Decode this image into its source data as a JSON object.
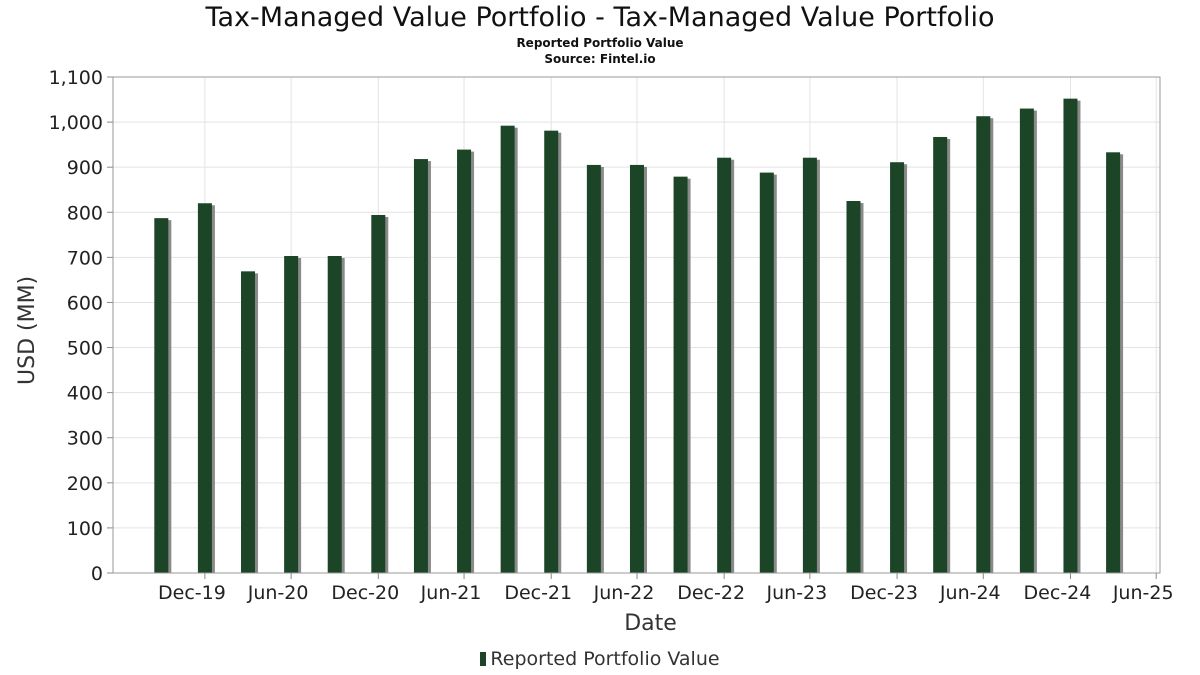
{
  "title": "Tax-Managed Value Portfolio - Tax-Managed Value Portfolio",
  "subtitle": "Reported Portfolio Value",
  "source": "Source: Fintel.io",
  "chart_data": {
    "type": "bar",
    "title": "Tax-Managed Value Portfolio - Tax-Managed Value Portfolio",
    "xlabel": "Date",
    "ylabel": "USD (MM)",
    "ylim": [
      0,
      1100
    ],
    "grid": true,
    "legend_position": "bottom",
    "y_ticks": [
      "0",
      "100",
      "200",
      "300",
      "400",
      "500",
      "600",
      "700",
      "800",
      "900",
      "1,000",
      "1,100"
    ],
    "x_ticks": [
      "Dec-19",
      "Jun-20",
      "Dec-20",
      "Jun-21",
      "Dec-21",
      "Jun-22",
      "Dec-22",
      "Jun-23",
      "Dec-23",
      "Jun-24",
      "Dec-24",
      "Jun-25"
    ],
    "series": [
      {
        "name": "Reported Portfolio Value",
        "color": "#1b4526",
        "x": [
          "2019-09-30",
          "2019-12-31",
          "2020-03-31",
          "2020-06-30",
          "2020-09-30",
          "2020-12-31",
          "2021-03-31",
          "2021-06-30",
          "2021-09-30",
          "2021-12-31",
          "2022-03-31",
          "2022-06-30",
          "2022-09-30",
          "2022-12-31",
          "2023-03-31",
          "2023-06-30",
          "2023-09-30",
          "2023-12-31",
          "2024-03-31",
          "2024-06-30",
          "2024-09-30",
          "2024-12-31",
          "2025-03-31"
        ],
        "values": [
          787,
          820,
          669,
          703,
          703,
          794,
          918,
          939,
          992,
          981,
          905,
          905,
          879,
          921,
          888,
          921,
          825,
          911,
          967,
          1013,
          1030,
          1052,
          933
        ]
      }
    ]
  }
}
